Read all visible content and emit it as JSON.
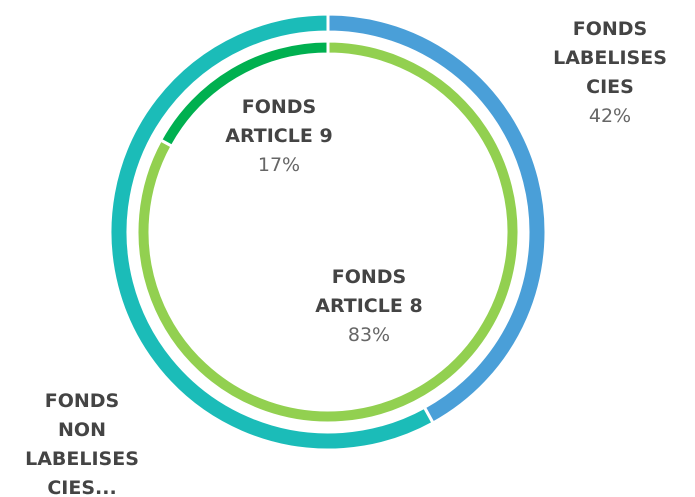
{
  "chart_data": {
    "type": "donut",
    "rings": [
      {
        "categories": [
          "FONDS LABELISES CIES",
          "FONDS NON LABELISES CIES..."
        ],
        "values": [
          42,
          58
        ],
        "value_labels": [
          "42%",
          null
        ],
        "colors": [
          "#4a9fd8",
          "#1bbcb8"
        ]
      },
      {
        "categories": [
          "FONDS ARTICLE 8",
          "FONDS ARTICLE 9"
        ],
        "values": [
          83,
          17
        ],
        "value_labels": [
          "83%",
          "17%"
        ],
        "colors": [
          "#92d050",
          "#00b050"
        ]
      }
    ]
  }
}
